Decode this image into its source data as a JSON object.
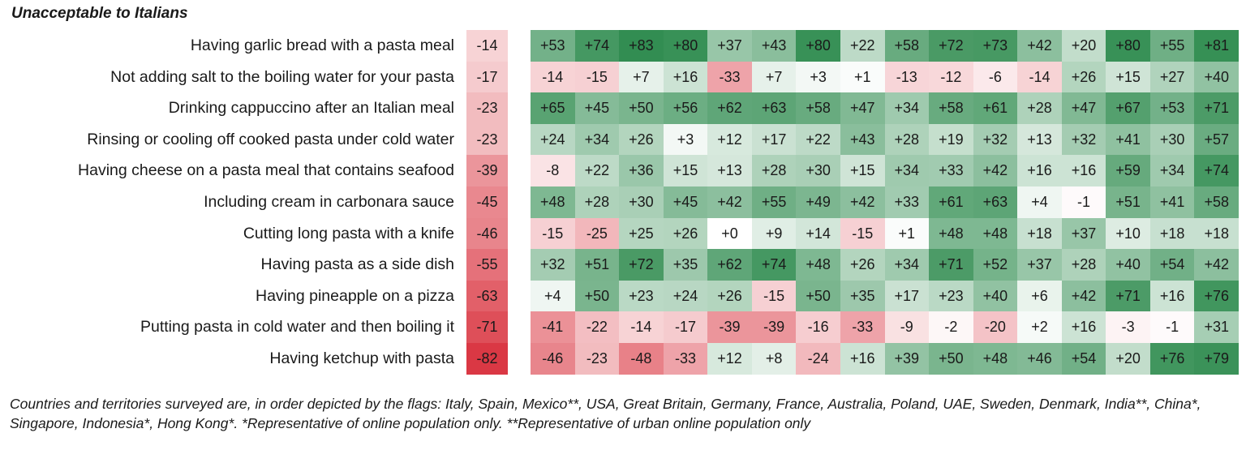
{
  "chart_data": {
    "type": "heatmap",
    "title": "Unacceptable to Italians",
    "rows": [
      "Having garlic bread with a pasta meal",
      "Not adding salt to the boiling water for your pasta",
      "Drinking cappuccino after an Italian meal",
      "Rinsing or cooling off cooked pasta under cold water",
      "Having cheese on a pasta meal that contains seafood",
      "Including cream in carbonara sauce",
      "Cutting long pasta with a knife",
      "Having pasta as a side dish",
      "Having pineapple on a pizza",
      "Putting pasta in cold water and then boiling it",
      "Having ketchup with pasta"
    ],
    "italy": [
      "-14",
      "-17",
      "-23",
      "-23",
      "-39",
      "-45",
      "-46",
      "-55",
      "-63",
      "-71",
      "-82"
    ],
    "others": [
      [
        "+53",
        "+74",
        "+83",
        "+80",
        "+37",
        "+43",
        "+80",
        "+22",
        "+58",
        "+72",
        "+73",
        "+42",
        "+20",
        "+80",
        "+55",
        "+81"
      ],
      [
        "-14",
        "-15",
        "+7",
        "+16",
        "-33",
        "+7",
        "+3",
        "+1",
        "-13",
        "-12",
        "-6",
        "-14",
        "+26",
        "+15",
        "+27",
        "+40"
      ],
      [
        "+65",
        "+45",
        "+50",
        "+56",
        "+62",
        "+63",
        "+58",
        "+47",
        "+34",
        "+58",
        "+61",
        "+28",
        "+47",
        "+67",
        "+53",
        "+71"
      ],
      [
        "+24",
        "+34",
        "+26",
        "+3",
        "+12",
        "+17",
        "+22",
        "+43",
        "+28",
        "+19",
        "+32",
        "+13",
        "+32",
        "+41",
        "+30",
        "+57"
      ],
      [
        "-8",
        "+22",
        "+36",
        "+15",
        "+13",
        "+28",
        "+30",
        "+15",
        "+34",
        "+33",
        "+42",
        "+16",
        "+16",
        "+59",
        "+34",
        "+74"
      ],
      [
        "+48",
        "+28",
        "+30",
        "+45",
        "+42",
        "+55",
        "+49",
        "+42",
        "+33",
        "+61",
        "+63",
        "+4",
        "-1",
        "+51",
        "+41",
        "+58"
      ],
      [
        "-15",
        "-25",
        "+25",
        "+26",
        "+0",
        "+9",
        "+14",
        "-15",
        "+1",
        "+48",
        "+48",
        "+18",
        "+37",
        "+10",
        "+18",
        "+18"
      ],
      [
        "+32",
        "+51",
        "+72",
        "+35",
        "+62",
        "+74",
        "+48",
        "+26",
        "+34",
        "+71",
        "+52",
        "+37",
        "+28",
        "+40",
        "+54",
        "+42"
      ],
      [
        "+4",
        "+50",
        "+23",
        "+24",
        "+26",
        "-15",
        "+50",
        "+35",
        "+17",
        "+23",
        "+40",
        "+6",
        "+42",
        "+71",
        "+16",
        "+76"
      ],
      [
        "-41",
        "-22",
        "-14",
        "-17",
        "-39",
        "-39",
        "-16",
        "-33",
        "-9",
        "-2",
        "-20",
        "+2",
        "+16",
        "-3",
        "-1",
        "+31"
      ],
      [
        "-46",
        "-23",
        "-48",
        "-33",
        "+12",
        "+8",
        "-24",
        "+16",
        "+39",
        "+50",
        "+48",
        "+46",
        "+54",
        "+20",
        "+76",
        "+79"
      ]
    ],
    "colors": {
      "positive": "#2e8b4e",
      "negative": "#d9323e",
      "neutral": "#ffffff"
    }
  },
  "footnote": "Countries and territories surveyed are, in order depicted by the flags: Italy, Spain, Mexico**, USA, Great Britain, Germany, France, Australia, Poland, UAE, Sweden, Denmark, India**, China*, Singapore, Indonesia*, Hong Kong*. *Representative of online population only. **Representative of urban online population only"
}
